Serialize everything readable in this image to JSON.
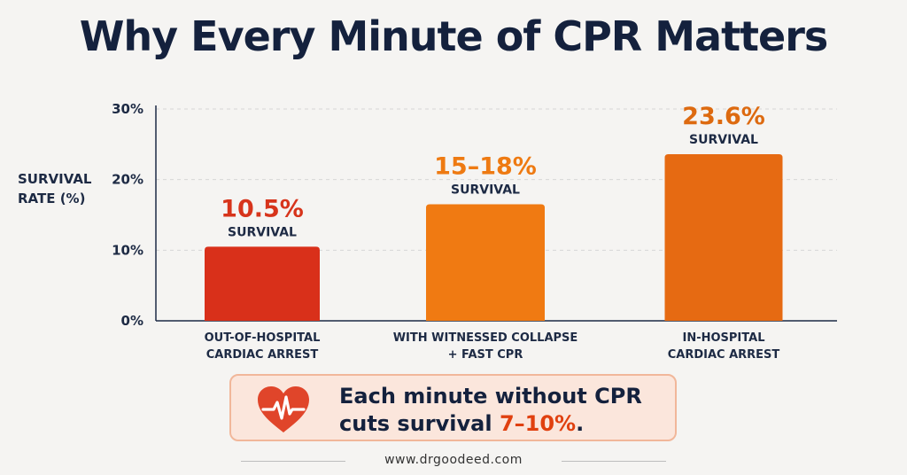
{
  "title": "Why Every Minute of CPR Matters",
  "colors": {
    "bar_out_of_hospital": "#d9301a",
    "bar_witnessed": "#f07a12",
    "bar_in_hospital": "#e66a12",
    "value_out_of_hospital": "#d7341b",
    "value_witnessed": "#ee7a12",
    "value_in_hospital": "#dd6a10",
    "heart": "#e0452a",
    "highlight": "#e0400f"
  },
  "chart_data": {
    "type": "bar",
    "title": "Why Every Minute of CPR Matters",
    "ylabel_lines": [
      "SURVIVAL",
      "RATE (%)"
    ],
    "ylim": [
      0,
      30
    ],
    "yticks": [
      "0%",
      "10%",
      "20%",
      "30%"
    ],
    "ytick_values": [
      0,
      10,
      20,
      30
    ],
    "grid": true,
    "categories": [
      [
        "OUT-OF-HOSPITAL",
        "CARDIAC ARREST"
      ],
      [
        "WITH WITNESSED COLLAPSE",
        "+ FAST CPR"
      ],
      [
        "IN-HOSPITAL",
        "CARDIAC ARREST"
      ]
    ],
    "values": [
      10.5,
      16.5,
      23.6
    ],
    "value_labels": [
      "10.5%",
      "15–18%",
      "23.6%"
    ],
    "value_sublabel": "SURVIVAL"
  },
  "callout": {
    "icon": "heartbeat-icon",
    "line1": "Each minute without CPR",
    "line2_prefix": "cuts survival ",
    "line2_highlight": "7–10%",
    "line2_suffix": "."
  },
  "footer": {
    "url": "www.drgoodeed.com"
  }
}
